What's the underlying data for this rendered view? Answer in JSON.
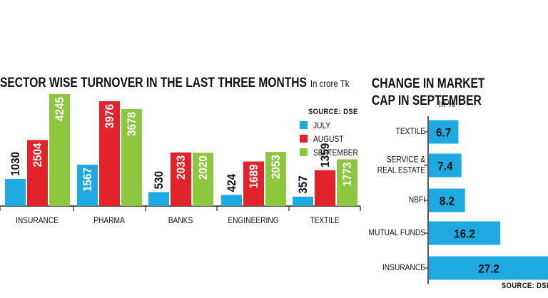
{
  "colors": {
    "july": "#1fa9e1",
    "august": "#e3232b",
    "september": "#8dc63f",
    "axis": "#222222"
  },
  "chart_data": [
    {
      "type": "bar",
      "title": "SECTOR WISE TURNOVER IN THE LAST THREE MONTHS",
      "unit": "In crore Tk",
      "source": "SOURCE: DSE",
      "categories": [
        "INSURANCE",
        "PHARMA",
        "BANKS",
        "ENGINEERING",
        "TEXTILE"
      ],
      "series": [
        {
          "name": "JULY",
          "values": [
            1030,
            1567,
            530,
            424,
            357
          ]
        },
        {
          "name": "AUGUST",
          "values": [
            2504,
            3976,
            2033,
            1689,
            1359
          ]
        },
        {
          "name": "SEPTEMBER",
          "values": [
            4245,
            3678,
            2020,
            2053,
            1773
          ]
        }
      ],
      "legend_position": "right",
      "ylim": [
        0,
        4245
      ]
    },
    {
      "type": "bar",
      "orientation": "horizontal",
      "title": "CHANGE IN MARKET CAP IN SEPTEMBER",
      "unit": "In %",
      "source": "SOURCE: DSE",
      "categories": [
        "TEXTILE",
        "SERVICE & REAL ESTATE",
        "NBFI",
        "MUTUAL FUNDS",
        "INSURANCE"
      ],
      "category_lines": [
        [
          "TEXTILE"
        ],
        [
          "SERVICE &",
          "REAL ESTATE"
        ],
        [
          "NBFI"
        ],
        [
          "MUTUAL FUNDS"
        ],
        [
          "INSURANCE"
        ]
      ],
      "values": [
        6.7,
        7.4,
        8.2,
        16.2,
        27.2
      ]
    }
  ]
}
